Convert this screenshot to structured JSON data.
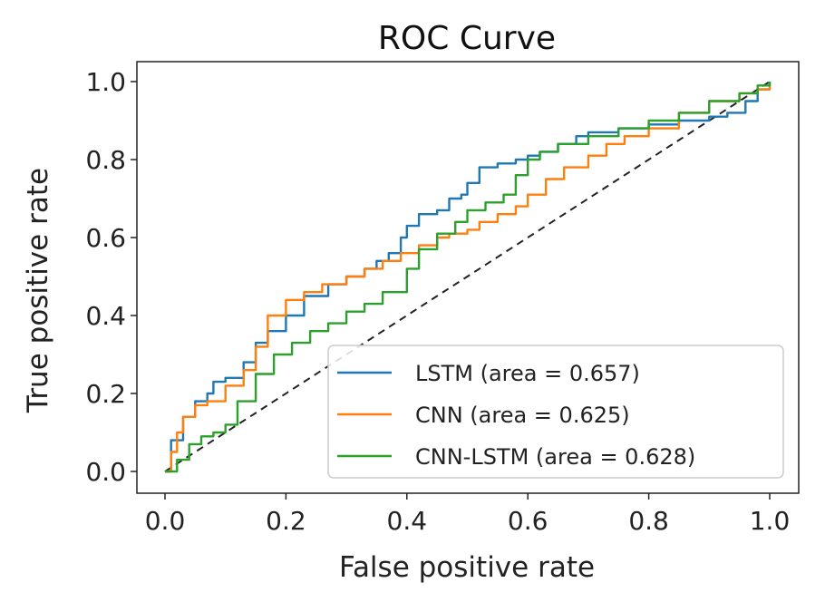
{
  "chart_data": {
    "type": "line",
    "title": "ROC Curve",
    "xlabel": "False positive rate",
    "ylabel": "True positive rate",
    "xlim": [
      0.0,
      1.0
    ],
    "ylim": [
      0.0,
      1.0
    ],
    "xticks": [
      "0.0",
      "0.2",
      "0.4",
      "0.6",
      "0.8",
      "1.0"
    ],
    "yticks": [
      "0.0",
      "0.2",
      "0.4",
      "0.6",
      "0.8",
      "1.0"
    ],
    "grid": false,
    "legend_position": "lower-right",
    "reference_line": {
      "style": "dashed",
      "color": "#222222",
      "x": [
        0,
        1
      ],
      "y": [
        0,
        1
      ]
    },
    "series": [
      {
        "name": "LSTM (area = 0.657)",
        "color": "#1f77b4",
        "x": [
          0.0,
          0.01,
          0.01,
          0.03,
          0.03,
          0.05,
          0.07,
          0.08,
          0.1,
          0.13,
          0.15,
          0.17,
          0.2,
          0.23,
          0.27,
          0.3,
          0.33,
          0.35,
          0.37,
          0.39,
          0.4,
          0.42,
          0.45,
          0.47,
          0.49,
          0.5,
          0.52,
          0.55,
          0.58,
          0.6,
          0.62,
          0.65,
          0.68,
          0.7,
          0.75,
          0.8,
          0.85,
          0.9,
          0.93,
          0.96,
          0.98,
          1.0
        ],
        "y": [
          0.0,
          0.05,
          0.08,
          0.1,
          0.14,
          0.18,
          0.2,
          0.23,
          0.24,
          0.28,
          0.33,
          0.36,
          0.4,
          0.45,
          0.48,
          0.5,
          0.52,
          0.54,
          0.56,
          0.6,
          0.63,
          0.66,
          0.67,
          0.7,
          0.71,
          0.74,
          0.78,
          0.79,
          0.8,
          0.81,
          0.82,
          0.84,
          0.86,
          0.87,
          0.88,
          0.89,
          0.9,
          0.91,
          0.92,
          0.95,
          0.98,
          1.0
        ]
      },
      {
        "name": "CNN (area = 0.625)",
        "color": "#ff7f0e",
        "x": [
          0.0,
          0.01,
          0.02,
          0.03,
          0.05,
          0.07,
          0.1,
          0.13,
          0.15,
          0.17,
          0.2,
          0.23,
          0.26,
          0.3,
          0.33,
          0.36,
          0.39,
          0.42,
          0.45,
          0.47,
          0.5,
          0.52,
          0.55,
          0.58,
          0.6,
          0.63,
          0.66,
          0.7,
          0.73,
          0.76,
          0.8,
          0.85,
          0.9,
          0.95,
          0.98,
          1.0
        ],
        "y": [
          0.0,
          0.05,
          0.1,
          0.14,
          0.17,
          0.18,
          0.22,
          0.26,
          0.32,
          0.4,
          0.44,
          0.46,
          0.48,
          0.5,
          0.52,
          0.54,
          0.56,
          0.58,
          0.6,
          0.61,
          0.62,
          0.64,
          0.66,
          0.68,
          0.71,
          0.75,
          0.78,
          0.81,
          0.84,
          0.86,
          0.88,
          0.92,
          0.95,
          0.97,
          0.98,
          0.99
        ]
      },
      {
        "name": "CNN-LSTM (area = 0.628)",
        "color": "#2ca02c",
        "x": [
          0.0,
          0.02,
          0.04,
          0.06,
          0.08,
          0.1,
          0.12,
          0.15,
          0.18,
          0.21,
          0.24,
          0.27,
          0.3,
          0.33,
          0.36,
          0.4,
          0.42,
          0.45,
          0.48,
          0.5,
          0.53,
          0.56,
          0.58,
          0.6,
          0.62,
          0.65,
          0.7,
          0.75,
          0.8,
          0.85,
          0.9,
          0.95,
          0.98,
          1.0
        ],
        "y": [
          0.0,
          0.03,
          0.07,
          0.09,
          0.1,
          0.12,
          0.18,
          0.25,
          0.3,
          0.33,
          0.36,
          0.38,
          0.41,
          0.43,
          0.46,
          0.52,
          0.57,
          0.61,
          0.64,
          0.67,
          0.69,
          0.71,
          0.76,
          0.8,
          0.82,
          0.84,
          0.86,
          0.88,
          0.9,
          0.92,
          0.95,
          0.97,
          0.99,
          1.0
        ]
      }
    ]
  }
}
